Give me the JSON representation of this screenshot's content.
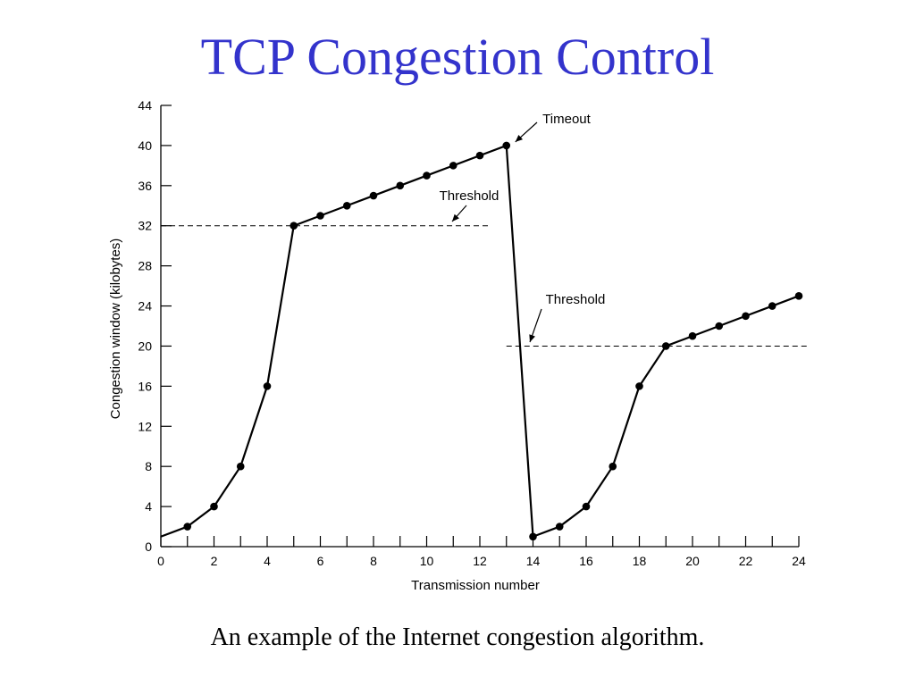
{
  "slide": {
    "title": "TCP Congestion Control",
    "caption": "An example of the Internet congestion algorithm."
  },
  "colors": {
    "title": "#3333cc",
    "line": "#000000",
    "background": "#ffffff"
  },
  "chart_data": {
    "type": "line",
    "title": "",
    "xlabel": "Transmission number",
    "ylabel": "Congestion window (kilobytes)",
    "xlim": [
      0,
      24
    ],
    "ylim": [
      0,
      44
    ],
    "x_ticks": [
      0,
      2,
      4,
      6,
      8,
      10,
      12,
      14,
      16,
      18,
      20,
      22,
      24
    ],
    "y_ticks": [
      0,
      4,
      8,
      12,
      16,
      20,
      24,
      28,
      32,
      36,
      40,
      44
    ],
    "grid": false,
    "legend": "none",
    "series": [
      {
        "x": [
          0,
          1,
          2,
          3,
          4,
          5,
          6,
          7,
          8,
          9,
          10,
          11,
          12,
          13,
          14,
          15,
          16,
          17,
          18,
          19,
          20,
          21,
          22,
          23,
          24
        ],
        "y": [
          1,
          2,
          4,
          8,
          16,
          32,
          33,
          34,
          35,
          36,
          37,
          38,
          39,
          40,
          1,
          2,
          4,
          8,
          16,
          20,
          21,
          22,
          23,
          24,
          25
        ],
        "marker_start_index": 1
      }
    ],
    "thresholds": [
      {
        "label": "Threshold",
        "y": 32,
        "x_from": 0,
        "x_to": 12.4
      },
      {
        "label": "Threshold",
        "y": 20,
        "x_from": 13,
        "x_to": 24.3
      }
    ],
    "annotations": [
      {
        "label": "Timeout",
        "x": 13,
        "y": 40
      }
    ]
  }
}
